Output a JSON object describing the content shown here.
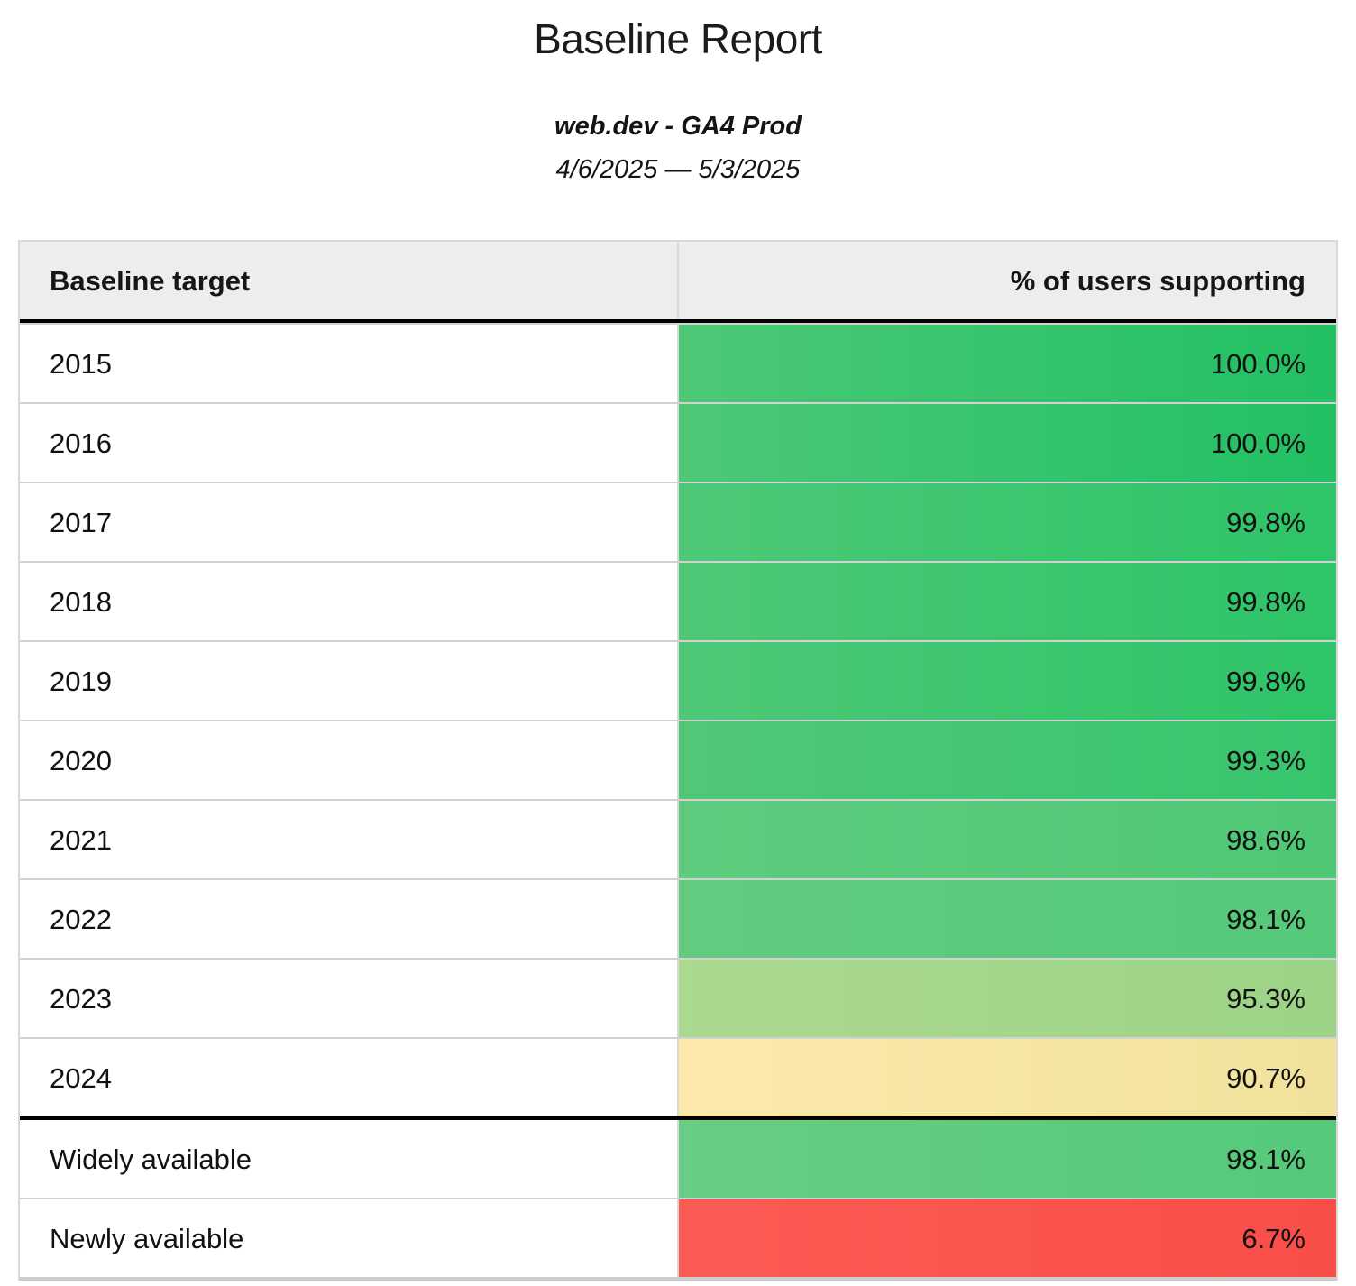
{
  "page": {
    "title": "Baseline Report",
    "subtitle": "web.dev - GA4 Prod",
    "date_range": "4/6/2025 — 5/3/2025"
  },
  "table": {
    "columns": [
      "Baseline target",
      "% of users supporting"
    ],
    "rows": [
      {
        "label": "2015",
        "value": "100.0%",
        "colors": {
          "left": "#4cc877",
          "right": "#21c063"
        }
      },
      {
        "label": "2016",
        "value": "100.0%",
        "colors": {
          "left": "#4cc877",
          "right": "#21c063"
        }
      },
      {
        "label": "2017",
        "value": "99.8%",
        "colors": {
          "left": "#4dc876",
          "right": "#2ec468"
        }
      },
      {
        "label": "2018",
        "value": "99.8%",
        "colors": {
          "left": "#4dc876",
          "right": "#2ec468"
        }
      },
      {
        "label": "2019",
        "value": "99.8%",
        "colors": {
          "left": "#4dc876",
          "right": "#2ec468"
        }
      },
      {
        "label": "2020",
        "value": "99.3%",
        "colors": {
          "left": "#50c878",
          "right": "#37c56c"
        }
      },
      {
        "label": "2021",
        "value": "98.6%",
        "colors": {
          "left": "#5fcb7e",
          "right": "#4ec875"
        }
      },
      {
        "label": "2022",
        "value": "98.1%",
        "colors": {
          "left": "#62cb80",
          "right": "#55c97a"
        }
      },
      {
        "label": "2023",
        "value": "95.3%",
        "colors": {
          "left": "#abd98f",
          "right": "#9cd386"
        }
      },
      {
        "label": "2024",
        "value": "90.7%",
        "colors": {
          "left": "#fde9ac",
          "right": "#f0e29b"
        }
      },
      {
        "label": "Widely available",
        "value": "98.1%",
        "colors": {
          "left": "#68cd85",
          "right": "#55c97a"
        }
      },
      {
        "label": "Newly available",
        "value": "6.7%",
        "colors": {
          "left": "#fc5b55",
          "right": "#f94d48"
        }
      }
    ]
  },
  "chart_data": {
    "type": "table",
    "title": "Baseline Report",
    "subtitle": "web.dev - GA4 Prod",
    "date_range": "4/6/2025 — 5/3/2025",
    "columns": [
      "Baseline target",
      "% of users supporting"
    ],
    "rows": [
      [
        "2015",
        100.0
      ],
      [
        "2016",
        100.0
      ],
      [
        "2017",
        99.8
      ],
      [
        "2018",
        99.8
      ],
      [
        "2019",
        99.8
      ],
      [
        "2020",
        99.3
      ],
      [
        "2021",
        98.6
      ],
      [
        "2022",
        98.1
      ],
      [
        "2023",
        95.3
      ],
      [
        "2024",
        90.7
      ],
      [
        "Widely available",
        98.1
      ],
      [
        "Newly available",
        6.7
      ]
    ],
    "layout_hints": {
      "value_format": "percent_one_decimal",
      "color_scale": "red-yellow-green conditional formatting on value column",
      "section_break_after_row": "2024"
    }
  }
}
